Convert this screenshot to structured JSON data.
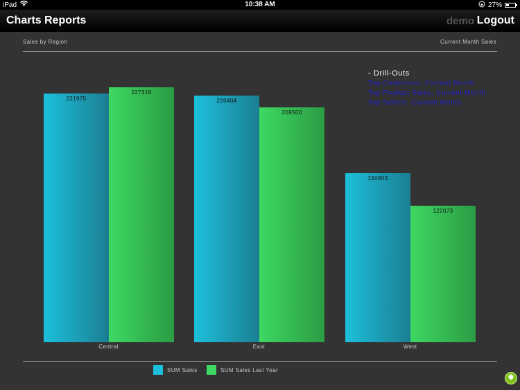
{
  "status": {
    "device": "iPad",
    "time": "10:38 AM",
    "battery": "27%"
  },
  "nav": {
    "charts": "Charts",
    "reports": "Reports",
    "user": "demo",
    "logout": "Logout"
  },
  "chart": {
    "title": "Sales by Region",
    "subtitle": "Current Month Sales"
  },
  "drill": {
    "title": "- Drill-Outs",
    "links": [
      "Top Customers, Current Month",
      "Top Product Sales, Current Month",
      "Top Sellers, Current Month"
    ]
  },
  "legend": {
    "sales": "SUM Sales",
    "last_year": "SUM Sales Last Year"
  },
  "colors": {
    "sales": "#1cc0dc",
    "last_year": "#3ed862",
    "link": "#1d1dcc"
  },
  "chart_data": {
    "type": "bar",
    "title": "Sales by Region",
    "categories": [
      "Central",
      "East",
      "West"
    ],
    "series": [
      {
        "name": "SUM Sales",
        "values": [
          221975,
          220404,
          150803
        ]
      },
      {
        "name": "SUM Sales Last Year",
        "values": [
          227318,
          209500,
          122073
        ]
      }
    ],
    "ylim": [
      0,
      240000
    ],
    "grid": false,
    "legend_position": "bottom"
  }
}
